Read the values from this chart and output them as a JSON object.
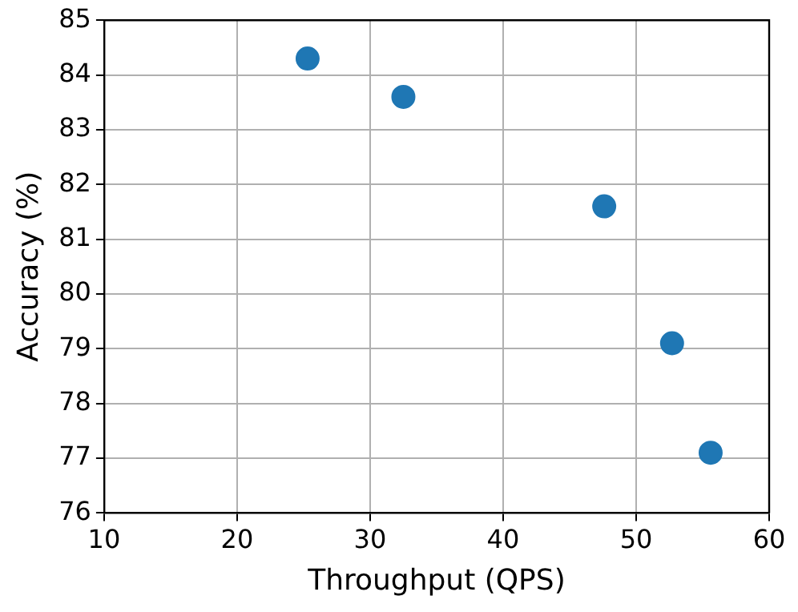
{
  "chart_data": {
    "type": "scatter",
    "xlabel": "Throughput (QPS)",
    "ylabel": "Accuracy (%)",
    "series": [
      {
        "color": "#1f77b4",
        "x": [
          25.3,
          32.5,
          47.6,
          52.7,
          55.6
        ],
        "values": [
          84.3,
          83.6,
          81.6,
          79.1,
          77.1
        ]
      }
    ],
    "xlim": [
      10,
      60
    ],
    "xticks": [
      10,
      20,
      30,
      40,
      50,
      60
    ],
    "ylim": [
      76,
      85
    ],
    "yticks": [
      76,
      77,
      78,
      79,
      80,
      81,
      82,
      83,
      84,
      85
    ],
    "grid": true,
    "marker": "circle"
  }
}
